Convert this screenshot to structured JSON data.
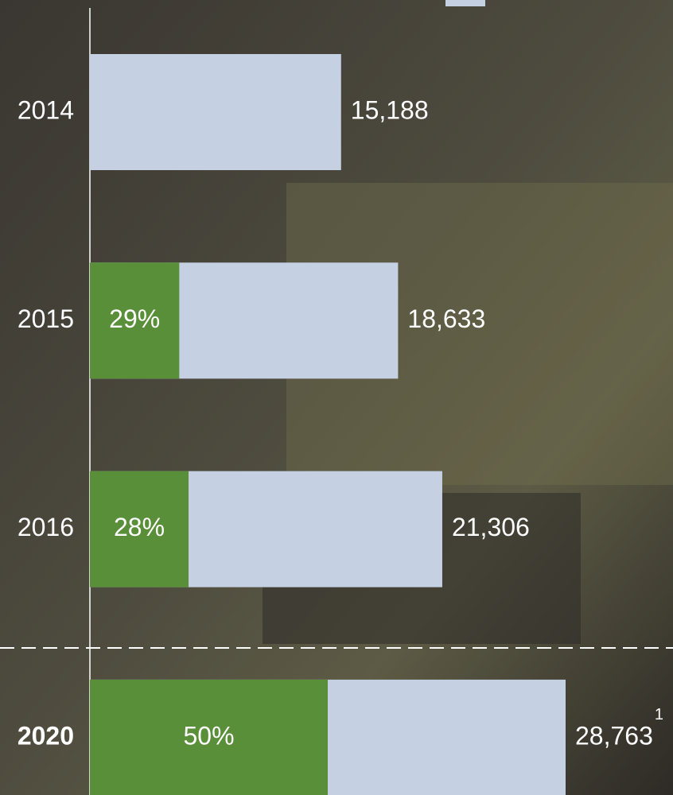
{
  "chart_data": {
    "type": "bar",
    "orientation": "horizontal",
    "categories": [
      "2014",
      "2015",
      "2016",
      "2020"
    ],
    "values": [
      15188,
      18633,
      21306,
      28763
    ],
    "value_labels": [
      "15,188",
      "18,633",
      "21,306",
      "28,763"
    ],
    "color": "#c5d0e3",
    "share_values": [
      null,
      29,
      28,
      50
    ],
    "share_labels": [
      null,
      "29%",
      "28%",
      "50%"
    ],
    "share_color": "#5a8f3a",
    "annotation": "1"
  }
}
